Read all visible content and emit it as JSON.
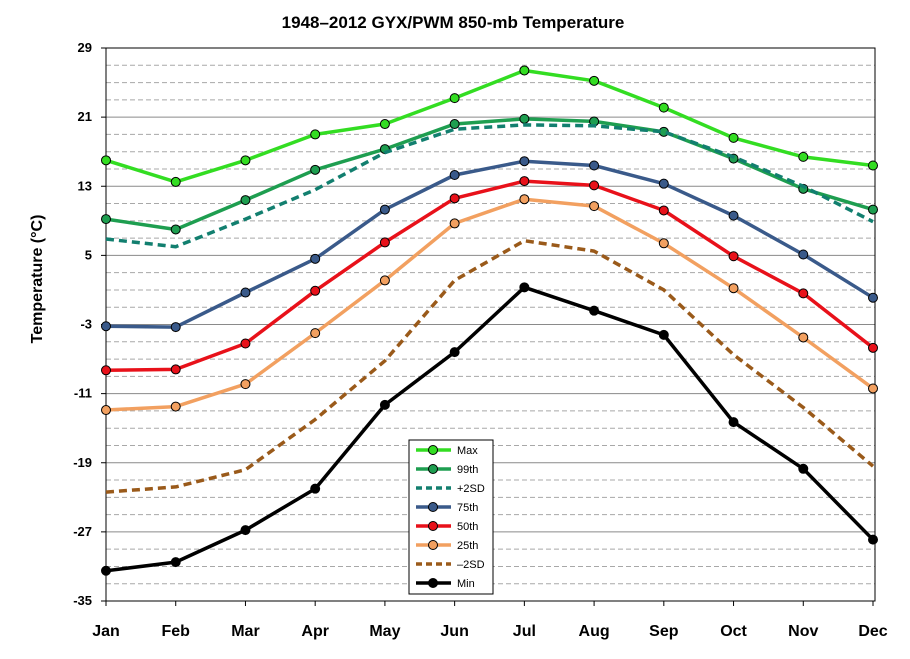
{
  "chart_data": {
    "type": "line",
    "title": "1948–2012 GYX/PWM 850-mb Temperature",
    "xlabel": "",
    "ylabel": "Temperature (°C)",
    "categories": [
      "Jan",
      "Feb",
      "Mar",
      "Apr",
      "May",
      "Jun",
      "Jul",
      "Aug",
      "Sep",
      "Oct",
      "Nov",
      "Dec"
    ],
    "ylim": [
      -35,
      29
    ],
    "yticks": [
      29,
      21,
      13,
      5,
      -3,
      -11,
      -19,
      -27,
      -35
    ],
    "minor_gridline_step": 2,
    "grid": true,
    "legend_position": "bottom-center",
    "series": [
      {
        "name": "Max",
        "color": "#33dd22",
        "dash": false,
        "markers": true,
        "values": [
          16.0,
          13.5,
          16.0,
          19.0,
          20.2,
          23.2,
          26.4,
          25.2,
          22.1,
          18.6,
          16.4,
          15.4
        ]
      },
      {
        "name": "99th",
        "color": "#1e9e50",
        "dash": false,
        "markers": true,
        "values": [
          9.2,
          8.0,
          11.4,
          14.9,
          17.3,
          20.2,
          20.8,
          20.5,
          19.3,
          16.2,
          12.7,
          10.3
        ]
      },
      {
        "name": "+2SD",
        "color": "#127f6f",
        "dash": true,
        "markers": false,
        "values": [
          6.9,
          6.0,
          9.2,
          12.6,
          16.9,
          19.6,
          20.1,
          20.0,
          19.3,
          16.4,
          13.0,
          8.9
        ]
      },
      {
        "name": "75th",
        "color": "#3a5a8a",
        "dash": false,
        "markers": true,
        "values": [
          -3.2,
          -3.3,
          0.7,
          4.6,
          10.3,
          14.3,
          15.9,
          15.4,
          13.3,
          9.6,
          5.1,
          0.1
        ]
      },
      {
        "name": "50th",
        "color": "#e8111a",
        "dash": false,
        "markers": true,
        "values": [
          -8.3,
          -8.2,
          -5.2,
          0.9,
          6.5,
          11.6,
          13.6,
          13.1,
          10.2,
          4.9,
          0.6,
          -5.7
        ]
      },
      {
        "name": "25th",
        "color": "#f2a060",
        "dash": false,
        "markers": true,
        "values": [
          -12.9,
          -12.5,
          -9.9,
          -4.0,
          2.1,
          8.7,
          11.5,
          10.7,
          6.4,
          1.2,
          -4.5,
          -10.4
        ]
      },
      {
        "name": "–2SD",
        "color": "#9a5a1a",
        "dash": true,
        "markers": false,
        "values": [
          -22.4,
          -21.8,
          -19.8,
          -14.0,
          -7.2,
          2.1,
          6.7,
          5.5,
          1.0,
          -6.5,
          -12.6,
          -19.4
        ]
      },
      {
        "name": "Min",
        "color": "#000000",
        "dash": false,
        "markers": true,
        "values": [
          -31.5,
          -30.5,
          -26.8,
          -22.0,
          -12.3,
          -6.2,
          1.3,
          -1.4,
          -4.2,
          -14.3,
          -19.7,
          -27.9
        ]
      }
    ]
  }
}
